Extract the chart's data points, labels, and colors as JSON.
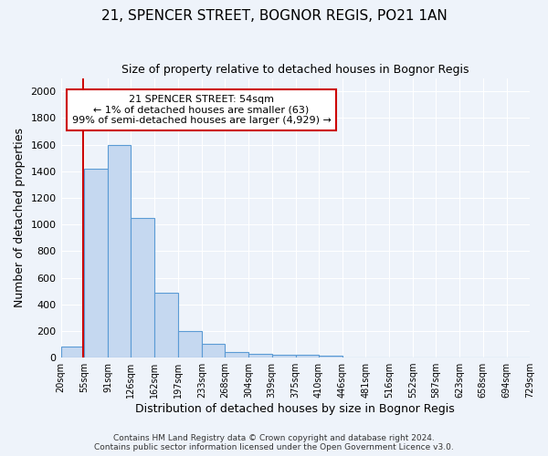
{
  "title": "21, SPENCER STREET, BOGNOR REGIS, PO21 1AN",
  "subtitle": "Size of property relative to detached houses in Bognor Regis",
  "xlabel": "Distribution of detached houses by size in Bognor Regis",
  "ylabel": "Number of detached properties",
  "bar_color": "#c5d8f0",
  "bar_edge_color": "#5b9bd5",
  "bin_labels": [
    "20sqm",
    "55sqm",
    "91sqm",
    "126sqm",
    "162sqm",
    "197sqm",
    "233sqm",
    "268sqm",
    "304sqm",
    "339sqm",
    "375sqm",
    "410sqm",
    "446sqm",
    "481sqm",
    "516sqm",
    "552sqm",
    "587sqm",
    "623sqm",
    "658sqm",
    "694sqm",
    "729sqm"
  ],
  "bar_heights": [
    80,
    1420,
    1600,
    1050,
    490,
    200,
    105,
    40,
    28,
    20,
    18,
    15,
    0,
    0,
    0,
    0,
    0,
    0,
    0,
    0
  ],
  "ylim": [
    0,
    2100
  ],
  "yticks": [
    0,
    200,
    400,
    600,
    800,
    1000,
    1200,
    1400,
    1600,
    1800,
    2000
  ],
  "red_line_x": 54,
  "annotation_text": "21 SPENCER STREET: 54sqm\n← 1% of detached houses are smaller (63)\n99% of semi-detached houses are larger (4,929) →",
  "footer_text": "Contains HM Land Registry data © Crown copyright and database right 2024.\nContains public sector information licensed under the Open Government Licence v3.0.",
  "bg_color": "#eef3fa",
  "grid_color": "#ffffff",
  "annotation_box_color": "#ffffff",
  "annotation_box_edge": "#cc0000",
  "red_line_color": "#cc0000"
}
